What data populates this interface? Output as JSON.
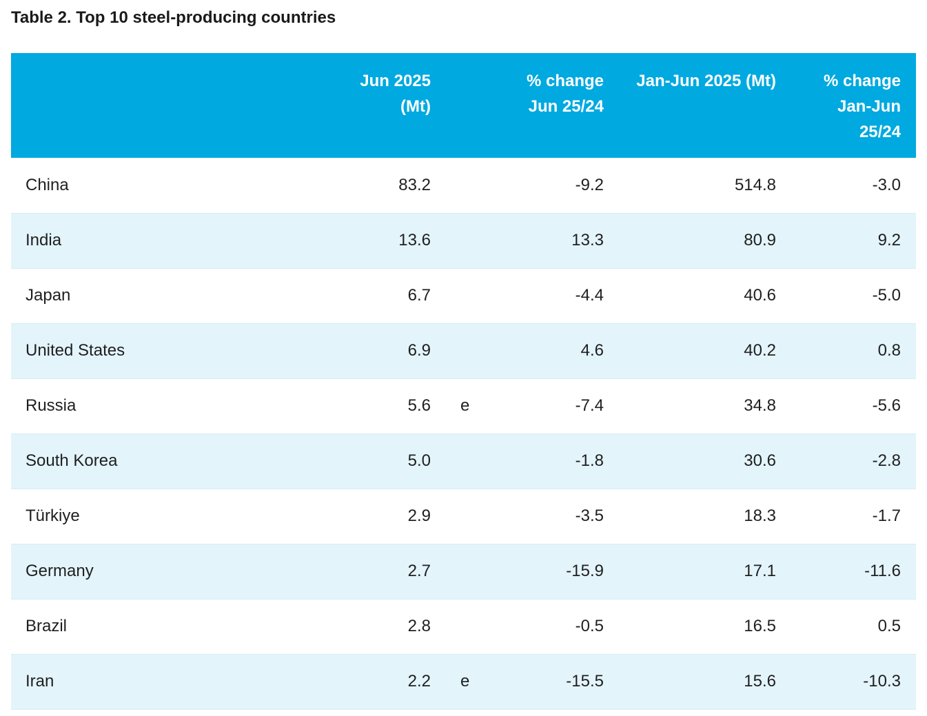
{
  "title": "Table 2. Top 10 steel-producing countries",
  "table": {
    "header": [
      [
        "Jun 2025",
        "(Mt)"
      ],
      [
        "% change",
        "Jun 25/24"
      ],
      [
        "Jan-Jun 2025 (Mt)"
      ],
      [
        "% change",
        "Jan-Jun",
        "25/24"
      ]
    ],
    "rows": [
      {
        "country": "China",
        "jun": "83.2",
        "change": "-9.2",
        "ytd": "514.8",
        "ytd_change": "-3.0"
      },
      {
        "country": "India",
        "jun": "13.6",
        "change": "13.3",
        "ytd": "80.9",
        "ytd_change": "9.2"
      },
      {
        "country": "Japan",
        "jun": "6.7",
        "change": "-4.4",
        "ytd": "40.6",
        "ytd_change": "-5.0"
      },
      {
        "country": "United States",
        "jun": "6.9",
        "change": "4.6",
        "ytd": "40.2",
        "ytd_change": "0.8"
      },
      {
        "country": "Russia",
        "jun": "5.6",
        "note": "e",
        "change": "-7.4",
        "ytd": "34.8",
        "ytd_change": "-5.6"
      },
      {
        "country": "South Korea",
        "jun": "5.0",
        "change": "-1.8",
        "ytd": "30.6",
        "ytd_change": "-2.8"
      },
      {
        "country": "Türkiye",
        "jun": "2.9",
        "change": "-3.5",
        "ytd": "18.3",
        "ytd_change": "-1.7"
      },
      {
        "country": "Germany",
        "jun": "2.7",
        "change": "-15.9",
        "ytd": "17.1",
        "ytd_change": "-11.6"
      },
      {
        "country": "Brazil",
        "jun": "2.8",
        "change": "-0.5",
        "ytd": "16.5",
        "ytd_change": "0.5"
      },
      {
        "country": "Iran",
        "jun": "2.2",
        "note": "e",
        "change": "-15.5",
        "ytd": "15.6",
        "ytd_change": "-10.3"
      }
    ]
  }
}
